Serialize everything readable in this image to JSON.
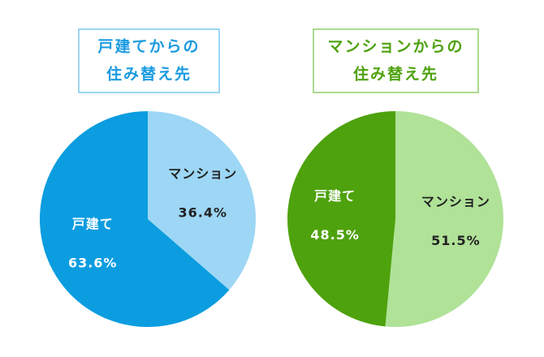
{
  "chart_data": [
    {
      "type": "pie",
      "title": [
        "戸建てからの",
        "住み替え先"
      ],
      "title_color": "#1a9be0",
      "frame_color": "#7cc8ee",
      "categories": [
        "マンション",
        "戸建て"
      ],
      "values": [
        36.4,
        63.6
      ],
      "value_labels": [
        "36.4%",
        "63.6%"
      ],
      "colors": [
        "#9dd7f5",
        "#0b9de0"
      ]
    },
    {
      "type": "pie",
      "title": [
        "マンションからの",
        "住み替え先"
      ],
      "title_color": "#4ea20d",
      "frame_color": "#8fcf6a",
      "categories": [
        "戸建て",
        "マンション"
      ],
      "values": [
        48.5,
        51.5
      ],
      "value_labels": [
        "48.5%",
        "51.5%"
      ],
      "colors": [
        "#4ea20d",
        "#b0e298"
      ],
      "clockwise_from_last": true
    }
  ]
}
